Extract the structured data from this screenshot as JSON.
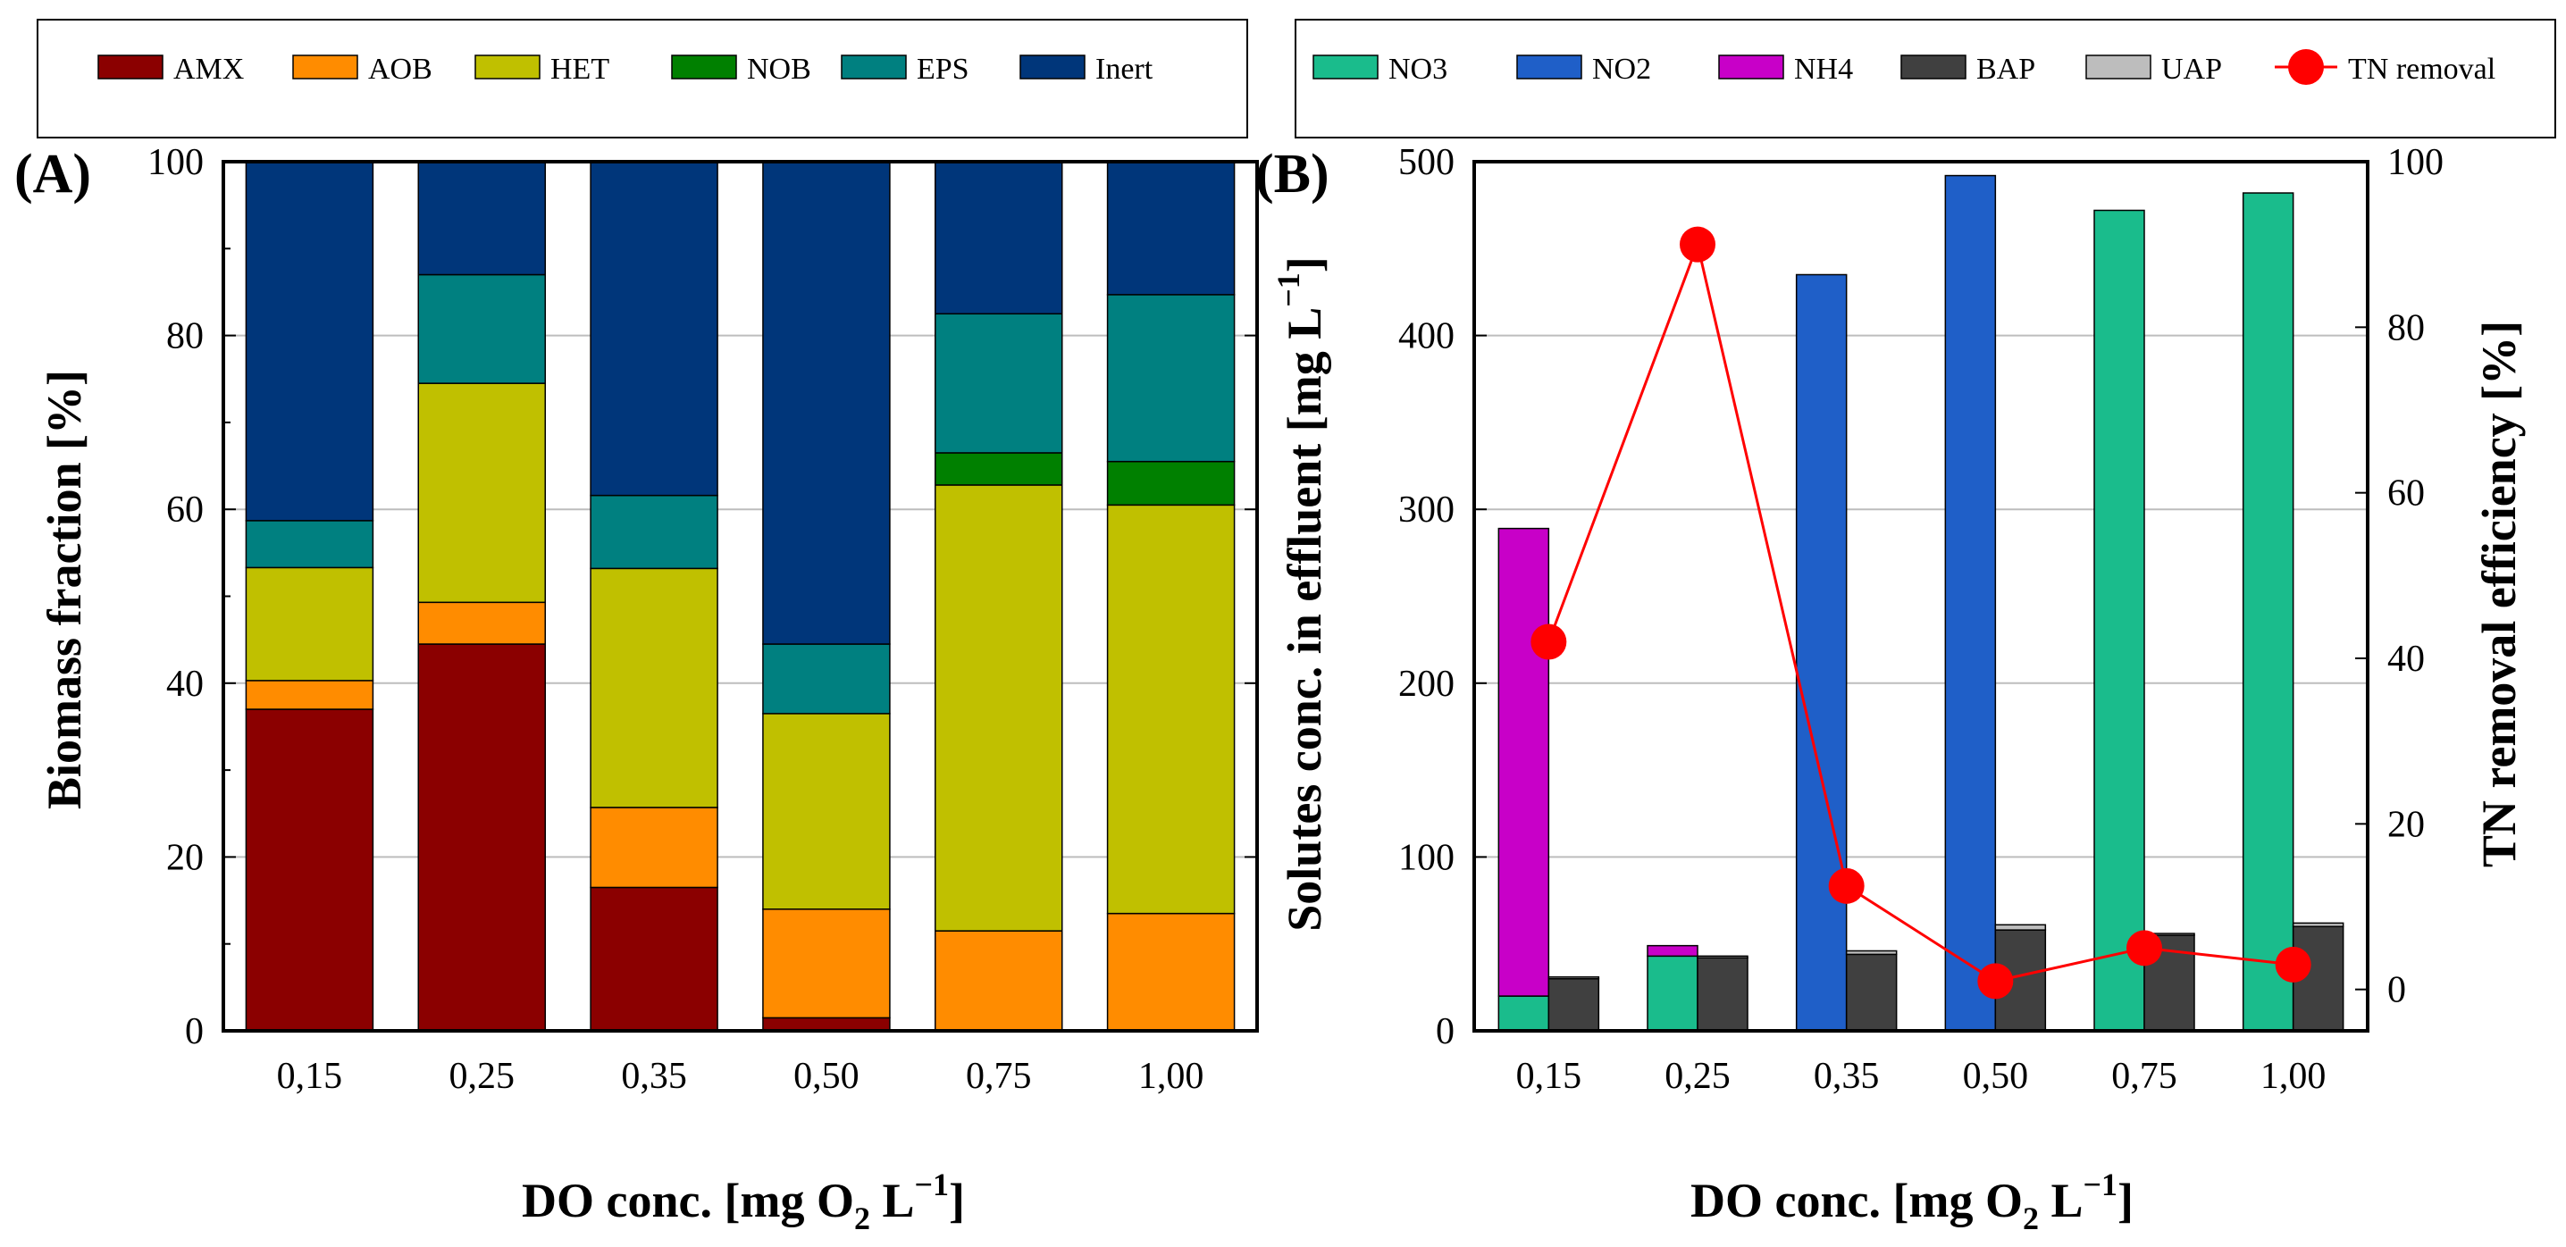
{
  "chart_data": [
    {
      "type": "bar",
      "stacked": true,
      "panel_label": "(A)",
      "title": "",
      "xlabel": "DO conc. [mg O2 L−1]",
      "xlabel_parts": {
        "main": "DO conc. [mg O",
        "sub": "2",
        "mid": " L",
        "sup": "−1",
        "end": "]"
      },
      "ylabel": "Biomass fraction [%]",
      "ylim": [
        0,
        100
      ],
      "yticks": [
        0,
        20,
        40,
        60,
        80,
        100
      ],
      "categories": [
        "0.15",
        "0.25",
        "0.35",
        "0.50",
        "0.75",
        "1.00"
      ],
      "series": [
        {
          "name": "AMX",
          "color": "#8b0000",
          "values": [
            37,
            44.5,
            16.5,
            1.5,
            0,
            0
          ]
        },
        {
          "name": "AOB",
          "color": "#ff8c00",
          "values": [
            3.3,
            4.8,
            9.2,
            12.5,
            11.5,
            13.5
          ]
        },
        {
          "name": "HET",
          "color": "#c0c000",
          "values": [
            13,
            25.2,
            27.5,
            22.5,
            51.3,
            47
          ]
        },
        {
          "name": "NOB",
          "color": "#008000",
          "values": [
            0,
            0,
            0,
            0,
            3.7,
            5
          ]
        },
        {
          "name": "EPS",
          "color": "#008080",
          "values": [
            5.4,
            12.5,
            8.4,
            8,
            16,
            19.2
          ]
        },
        {
          "name": "Inert",
          "color": "#00367a",
          "values": [
            41.3,
            13,
            38.4,
            55.5,
            17.5,
            15.3
          ]
        }
      ],
      "legend_position": "top",
      "grid": true
    },
    {
      "type": "bar",
      "panel_label": "(B)",
      "title": "",
      "xlabel": "DO conc. [mg O2 L−1]",
      "xlabel_parts": {
        "main": "DO conc. [mg O",
        "sub": "2",
        "mid": " L",
        "sup": "−1",
        "end": "]"
      },
      "ylabel": "Solutes conc. in effluent [mg L−1]",
      "ylabel_parts": {
        "main": "Solutes conc. in effluent [mg L",
        "sup": "−1",
        "end": "]"
      },
      "ylim": [
        0,
        500
      ],
      "yticks": [
        0,
        100,
        200,
        300,
        400,
        500
      ],
      "y2label": "TN removal efficiency [%]",
      "y2lim": [
        -5,
        100
      ],
      "y2ticks": [
        0,
        20,
        40,
        60,
        80,
        100
      ],
      "categories": [
        "0.15",
        "0.25",
        "0.35",
        "0.50",
        "0.75",
        "1.00"
      ],
      "bar_groups": [
        {
          "name": "nitrogen species",
          "stacked": true,
          "series": [
            {
              "name": "NO3",
              "color": "#1abc8c",
              "values": [
                20,
                43,
                0,
                0,
                472,
                482
              ]
            },
            {
              "name": "NO2",
              "color": "#1f5fc8",
              "values": [
                0,
                0,
                435,
                492,
                0,
                0
              ]
            },
            {
              "name": "NH4",
              "color": "#c800c8",
              "values": [
                269,
                6,
                0,
                0,
                0,
                0
              ]
            }
          ]
        },
        {
          "name": "microbial products",
          "stacked": true,
          "series": [
            {
              "name": "BAP",
              "color": "#404040",
              "values": [
                30,
                42,
                44,
                58,
                55,
                60
              ]
            },
            {
              "name": "UAP",
              "color": "#bdbdbd",
              "values": [
                1,
                1,
                2,
                3,
                1,
                2
              ]
            }
          ]
        }
      ],
      "line_series": [
        {
          "name": "TN removal",
          "color": "#ff0000",
          "axis": "right",
          "values": [
            42,
            90,
            12.5,
            1,
            5,
            3
          ]
        }
      ],
      "legend_order": [
        "NO3",
        "NO2",
        "NH4",
        "BAP",
        "UAP",
        "TN removal"
      ],
      "legend_position": "top",
      "grid": true
    }
  ]
}
